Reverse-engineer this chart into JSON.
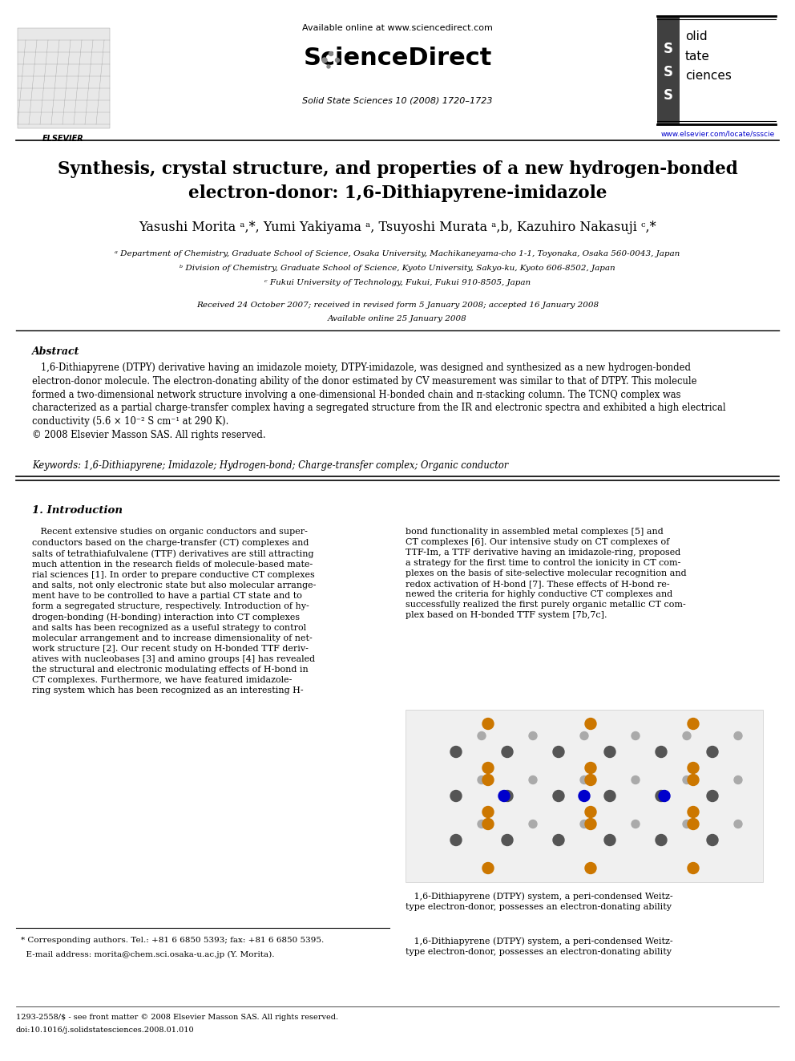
{
  "bg_color": "#ffffff",
  "title_line1": "Synthesis, crystal structure, and properties of a new hydrogen-bonded",
  "title_line2": "electron-donor: 1,6-Dithiapyrene-imidazole",
  "authors": "Yasushi Morita ᵃ,*, Yumi Yakiyama ᵃ, Tsuyoshi Murata ᵃ,b, Kazuhiro Nakasuji ᶜ,*",
  "affil_a": "ᵃ Department of Chemistry, Graduate School of Science, Osaka University, Machikaneyama-cho 1-1, Toyonaka, Osaka 560-0043, Japan",
  "affil_b": "ᵇ Division of Chemistry, Graduate School of Science, Kyoto University, Sakyo-ku, Kyoto 606-8502, Japan",
  "affil_c": "ᶜ Fukui University of Technology, Fukui, Fukui 910-8505, Japan",
  "received": "Received 24 October 2007; received in revised form 5 January 2008; accepted 16 January 2008",
  "available": "Available online 25 January 2008",
  "header_center": "Available online at www.sciencedirect.com",
  "journal_line": "Solid State Sciences 10 (2008) 1720–1723",
  "website": "www.elsevier.com/locate/ssscie",
  "abstract_title": "Abstract",
  "abstract_text": "   1,6-Dithiapyrene (DTPY) derivative having an imidazole moiety, DTPY-imidazole, was designed and synthesized as a new hydrogen-bonded\nelectron-donor molecule. The electron-donating ability of the donor estimated by CV measurement was similar to that of DTPY. This molecule\nformed a two-dimensional network structure involving a one-dimensional H-bonded chain and π-stacking column. The TCNQ complex was\ncharacterized as a partial charge-transfer complex having a segregated structure from the IR and electronic spectra and exhibited a high electrical\nconductivity (5.6 × 10⁻² S cm⁻¹ at 290 K).\n© 2008 Elsevier Masson SAS. All rights reserved.",
  "keywords_text": "Keywords: 1,6-Dithiapyrene; Imidazole; Hydrogen-bond; Charge-transfer complex; Organic conductor",
  "section1_title": "1. Introduction",
  "section1_col1": "   Recent extensive studies on organic conductors and super-\nconductors based on the charge-transfer (CT) complexes and\nsalts of tetrathiafulvalene (TTF) derivatives are still attracting\nmuch attention in the research fields of molecule-based mate-\nrial sciences [1]. In order to prepare conductive CT complexes\nand salts, not only electronic state but also molecular arrange-\nment have to be controlled to have a partial CT state and to\nform a segregated structure, respectively. Introduction of hy-\ndrogen-bonding (H-bonding) interaction into CT complexes\nand salts has been recognized as a useful strategy to control\nmolecular arrangement and to increase dimensionality of net-\nwork structure [2]. Our recent study on H-bonded TTF deriv-\natives with nucleobases [3] and amino groups [4] has revealed\nthe structural and electronic modulating effects of H-bond in\nCT complexes. Furthermore, we have featured imidazole-\nring system which has been recognized as an interesting H-",
  "section1_col2": "bond functionality in assembled metal complexes [5] and\nCT complexes [6]. Our intensive study on CT complexes of\nTTF-Im, a TTF derivative having an imidazole-ring, proposed\na strategy for the first time to control the ionicity in CT com-\nplexes on the basis of site-selective molecular recognition and\nredox activation of H-bond [7]. These effects of H-bond re-\nnewed the criteria for highly conductive CT complexes and\nsuccessfully realized the first purely organic metallic CT com-\nplex based on H-bonded TTF system [7b,7c].",
  "section1_col2b": "   1,6-Dithiapyrene (DTPY) system, a peri-condensed Weitz-\ntype electron-donor, possesses an electron-donating ability",
  "footer_note_line1": "* Corresponding authors. Tel.: +81 6 6850 5393; fax: +81 6 6850 5395.",
  "footer_note_line2": "  E-mail address: morita@chem.sci.osaka-u.ac.jp (Y. Morita).",
  "footer_issn1": "1293-2558/$ - see front matter © 2008 Elsevier Masson SAS. All rights reserved.",
  "footer_issn2": "doi:10.1016/j.solidstatesciences.2008.01.010",
  "solid_state": "Solid\nState\nSciences",
  "sciencedirect_label": "ScienceDirect"
}
